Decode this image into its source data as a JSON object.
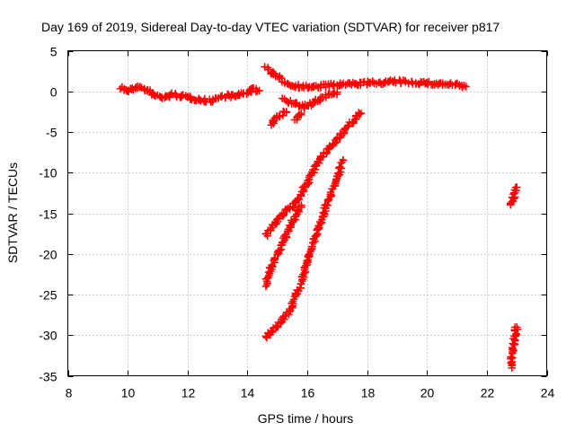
{
  "chart_data": {
    "type": "scatter",
    "title": "Day 169 of 2019, Sidereal Day-to-day VTEC variation (SDTVAR) for receiver p817",
    "xlabel": "GPS time / hours",
    "ylabel": "SDTVAR / TECUs",
    "xlim": [
      8,
      24
    ],
    "ylim": [
      -35,
      5
    ],
    "xticks": [
      8,
      10,
      12,
      14,
      16,
      18,
      20,
      22,
      24
    ],
    "yticks": [
      -35,
      -30,
      -25,
      -20,
      -15,
      -10,
      -5,
      0,
      5
    ],
    "grid": true,
    "legend": "none",
    "marker": "plus",
    "color": "#ff0000",
    "series": [
      {
        "segments": [
          [
            [
              9.8,
              0.5
            ],
            [
              10.0,
              0.0
            ],
            [
              10.3,
              0.6
            ],
            [
              10.6,
              0.2
            ],
            [
              10.9,
              -0.5
            ],
            [
              11.2,
              -0.8
            ],
            [
              11.5,
              -0.4
            ],
            [
              11.8,
              -0.6
            ],
            [
              12.1,
              -0.8
            ],
            [
              12.4,
              -1.0
            ],
            [
              12.7,
              -1.2
            ],
            [
              13.0,
              -0.8
            ],
            [
              13.3,
              -0.5
            ],
            [
              13.6,
              -0.6
            ],
            [
              13.9,
              -0.2
            ],
            [
              14.2,
              0.2
            ],
            [
              14.4,
              0.1
            ]
          ],
          [
            [
              14.6,
              3.0
            ],
            [
              15.0,
              1.8
            ],
            [
              15.4,
              0.8
            ],
            [
              15.8,
              0.6
            ],
            [
              16.2,
              0.5
            ],
            [
              16.6,
              0.7
            ],
            [
              17.0,
              0.8
            ],
            [
              17.5,
              0.9
            ],
            [
              18.0,
              1.0
            ],
            [
              18.5,
              1.1
            ],
            [
              19.0,
              1.2
            ],
            [
              19.5,
              1.1
            ],
            [
              20.0,
              1.0
            ],
            [
              20.5,
              0.9
            ],
            [
              21.0,
              0.8
            ],
            [
              21.3,
              0.6
            ]
          ],
          [
            [
              15.2,
              -1.0
            ],
            [
              15.6,
              -1.6
            ],
            [
              15.9,
              -1.9
            ],
            [
              16.2,
              -1.4
            ],
            [
              16.6,
              -0.6
            ],
            [
              17.0,
              -0.1
            ]
          ],
          [
            [
              14.8,
              -4.0
            ],
            [
              15.0,
              -3.2
            ],
            [
              15.3,
              -2.5
            ]
          ],
          [
            [
              15.6,
              -3.5
            ],
            [
              15.8,
              -2.7
            ]
          ],
          [
            [
              14.6,
              -17.7
            ],
            [
              14.9,
              -16.4
            ],
            [
              15.2,
              -15.0
            ],
            [
              15.5,
              -14.2
            ],
            [
              15.8,
              -12.5
            ],
            [
              16.1,
              -10.6
            ],
            [
              16.4,
              -8.5
            ],
            [
              16.8,
              -6.8
            ],
            [
              17.2,
              -5.0
            ],
            [
              17.6,
              -3.4
            ],
            [
              17.8,
              -2.7
            ]
          ],
          [
            [
              14.6,
              -23.8
            ],
            [
              14.8,
              -21.7
            ],
            [
              15.0,
              -20.0
            ],
            [
              15.2,
              -18.5
            ],
            [
              15.4,
              -16.8
            ],
            [
              15.6,
              -15.3
            ],
            [
              15.8,
              -14.0
            ]
          ],
          [
            [
              14.6,
              -30.3
            ],
            [
              15.0,
              -28.9
            ],
            [
              15.4,
              -27.0
            ],
            [
              15.7,
              -24.5
            ],
            [
              16.0,
              -21.0
            ],
            [
              16.3,
              -17.5
            ],
            [
              16.6,
              -14.5
            ],
            [
              16.9,
              -11.5
            ],
            [
              17.2,
              -8.5
            ]
          ],
          [
            [
              22.8,
              -14.0
            ],
            [
              22.9,
              -12.8
            ],
            [
              23.0,
              -11.8
            ]
          ],
          [
            [
              22.8,
              -34.0
            ],
            [
              22.85,
              -32.5
            ],
            [
              22.9,
              -31.0
            ],
            [
              22.95,
              -29.5
            ],
            [
              23.0,
              -29.0
            ]
          ]
        ]
      }
    ]
  }
}
